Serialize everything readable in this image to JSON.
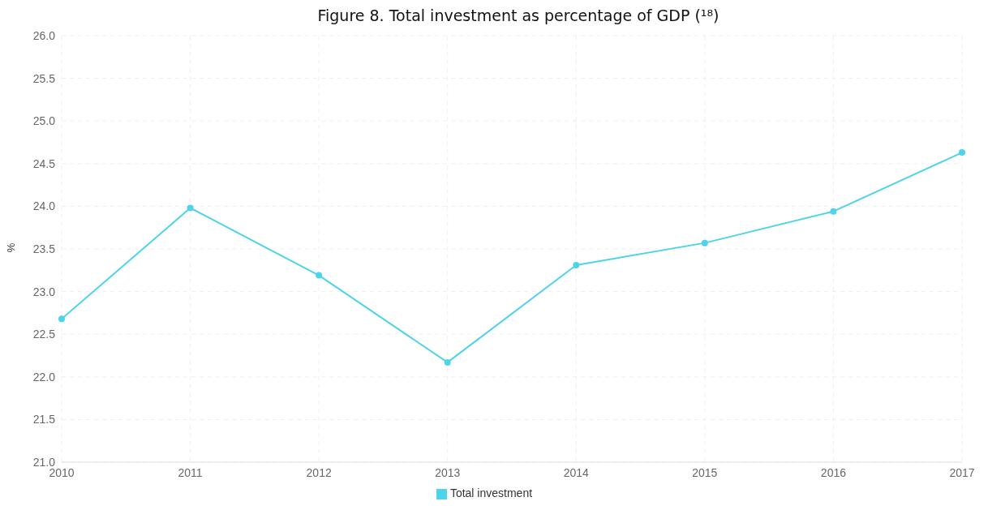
{
  "chart_data": {
    "type": "line",
    "title": "Figure 8. Total investment as percentage of GDP (¹⁸)",
    "ylabel": "%",
    "x": [
      2010,
      2011,
      2012,
      2013,
      2014,
      2015,
      2016,
      2017
    ],
    "series": [
      {
        "name": "Total investment",
        "color": "#4dd4e8",
        "values": [
          22.68,
          23.98,
          23.19,
          22.17,
          23.31,
          23.57,
          23.94,
          24.63
        ]
      }
    ],
    "xlim": [
      2010,
      2017
    ],
    "xticks": [
      2010,
      2011,
      2012,
      2013,
      2014,
      2015,
      2016,
      2017
    ],
    "ylim": [
      21,
      26
    ],
    "yticks": [
      {
        "value": 21,
        "label": "21.0"
      },
      {
        "value": 21.5,
        "label": "21.5"
      },
      {
        "value": 22,
        "label": "22.0"
      },
      {
        "value": 22.5,
        "label": "22.5"
      },
      {
        "value": 23,
        "label": "23.0"
      },
      {
        "value": 23.5,
        "label": "23.5"
      },
      {
        "value": 24,
        "label": "24.0"
      },
      {
        "value": 24.5,
        "label": "24.5"
      },
      {
        "value": 25,
        "label": "25.0"
      },
      {
        "value": 25.5,
        "label": "25.5"
      },
      {
        "value": 26,
        "label": "26.0"
      }
    ],
    "grid": true,
    "legend": "bottom",
    "marker": "circle",
    "line_style": "solid"
  }
}
